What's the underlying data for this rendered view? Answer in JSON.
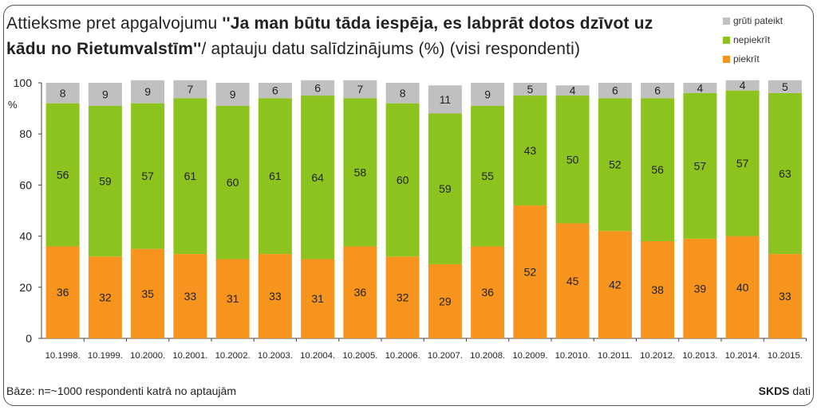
{
  "chart_data": {
    "type": "bar",
    "stacked": true,
    "title_parts": {
      "pre": "Attieksme pret apgalvojumu ",
      "bold": "''Ja man būtu tāda iespēja, es labprāt dotos dzīvot uz kādu no Rietumvalstīm''",
      "post": "/ aptauju datu salīdzinājums (%) (visi respondenti)"
    },
    "ylabel": "%",
    "ylim": [
      0,
      100
    ],
    "yticks": [
      0,
      20,
      40,
      60,
      80,
      100
    ],
    "grid": false,
    "legend_position": "top-right",
    "categories": [
      "10.1998.",
      "10.1999.",
      "10.2000.",
      "10.2001.",
      "10.2002.",
      "10.2003.",
      "10.2004.",
      "10.2005.",
      "10.2006.",
      "10.2007.",
      "10.2008.",
      "10.2009.",
      "10.2010.",
      "10.2011.",
      "10.2012.",
      "10.2013.",
      "10.2014.",
      "10.2015."
    ],
    "series": [
      {
        "name": "piekrīt",
        "color": "#f7941d",
        "values": [
          36,
          32,
          35,
          33,
          31,
          33,
          31,
          36,
          32,
          29,
          36,
          52,
          45,
          42,
          38,
          39,
          40,
          33
        ]
      },
      {
        "name": "nepiekrīt",
        "color": "#8dc31f",
        "values": [
          56,
          59,
          57,
          61,
          60,
          61,
          64,
          58,
          60,
          59,
          55,
          43,
          50,
          52,
          56,
          57,
          57,
          63
        ]
      },
      {
        "name": "grūti pateikt",
        "color": "#c0c0c0",
        "values": [
          8,
          9,
          9,
          7,
          9,
          6,
          6,
          7,
          8,
          11,
          9,
          5,
          4,
          6,
          6,
          4,
          4,
          5
        ]
      }
    ]
  },
  "footer": {
    "base": "Bāze: n=~1000 respondenti katrā no aptaujām",
    "source_bold": "SKDS",
    "source_rest": " dati"
  }
}
